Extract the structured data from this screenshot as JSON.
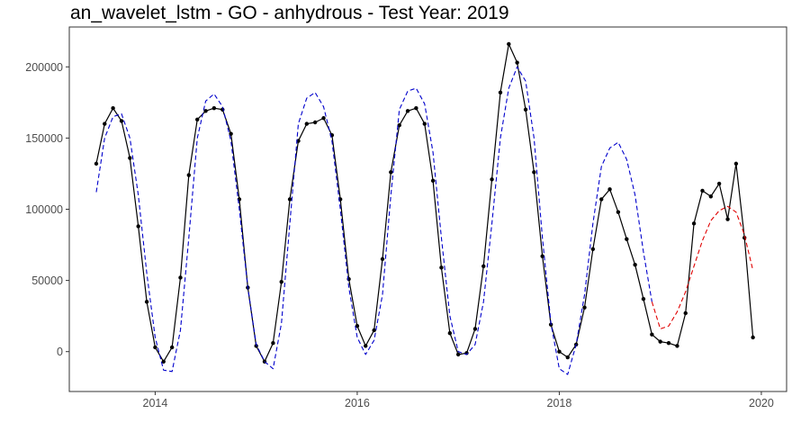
{
  "chart_data": {
    "type": "line",
    "title": "an_wavelet_lstm - GO - anhydrous - Test Year: 2019",
    "xlabel": "",
    "ylabel": "",
    "xlim": [
      2013.15,
      2020.25
    ],
    "ylim": [
      -28000,
      228000
    ],
    "x_ticks": [
      2014,
      2016,
      2018,
      2020
    ],
    "y_ticks": [
      0,
      50000,
      100000,
      150000,
      200000
    ],
    "x_tick_labels": [
      "2014",
      "2016",
      "2018",
      "2020"
    ],
    "y_tick_labels": [
      "0",
      "50000",
      "100000",
      "150000",
      "200000"
    ],
    "grid": false,
    "legend": false,
    "series": [
      {
        "style": "solid-with-points",
        "color": "#000000",
        "x": [
          2013.417,
          2013.5,
          2013.583,
          2013.667,
          2013.75,
          2013.833,
          2013.917,
          2014.0,
          2014.083,
          2014.167,
          2014.25,
          2014.333,
          2014.417,
          2014.5,
          2014.583,
          2014.667,
          2014.75,
          2014.833,
          2014.917,
          2015.0,
          2015.083,
          2015.167,
          2015.25,
          2015.333,
          2015.417,
          2015.5,
          2015.583,
          2015.667,
          2015.75,
          2015.833,
          2015.917,
          2016.0,
          2016.083,
          2016.167,
          2016.25,
          2016.333,
          2016.417,
          2016.5,
          2016.583,
          2016.667,
          2016.75,
          2016.833,
          2016.917,
          2017.0,
          2017.083,
          2017.167,
          2017.25,
          2017.333,
          2017.417,
          2017.5,
          2017.583,
          2017.667,
          2017.75,
          2017.833,
          2017.917,
          2018.0,
          2018.083,
          2018.167,
          2018.25,
          2018.333,
          2018.417,
          2018.5,
          2018.583,
          2018.667,
          2018.75,
          2018.833,
          2018.917,
          2019.0,
          2019.083,
          2019.167,
          2019.25,
          2019.333,
          2019.417,
          2019.5,
          2019.583,
          2019.667,
          2019.75,
          2019.833,
          2019.917
        ],
        "values": [
          132000,
          160000,
          171000,
          162000,
          136000,
          88000,
          35000,
          3000,
          -7000,
          3000,
          52000,
          124000,
          163000,
          169000,
          171000,
          170000,
          153000,
          107000,
          45000,
          4000,
          -7000,
          6000,
          49000,
          107000,
          148000,
          160000,
          161000,
          164000,
          152000,
          107000,
          51000,
          18000,
          4000,
          15000,
          65000,
          126000,
          159000,
          169000,
          171000,
          160000,
          120000,
          59000,
          13000,
          -2000,
          -1000,
          16000,
          60000,
          121000,
          182000,
          216000,
          203000,
          170000,
          126000,
          67000,
          19000,
          0,
          -4000,
          5000,
          31000,
          72000,
          107000,
          114000,
          98000,
          79000,
          61000,
          37000,
          12000,
          7000,
          6000,
          4000,
          27000,
          90000,
          113000,
          109000,
          118000,
          93000,
          132000,
          80000,
          10000
        ]
      },
      {
        "style": "dashed",
        "color": "#0000cc",
        "x": [
          2013.417,
          2013.5,
          2013.583,
          2013.667,
          2013.75,
          2013.833,
          2013.917,
          2014.0,
          2014.083,
          2014.167,
          2014.25,
          2014.333,
          2014.417,
          2014.5,
          2014.583,
          2014.667,
          2014.75,
          2014.833,
          2014.917,
          2015.0,
          2015.083,
          2015.167,
          2015.25,
          2015.333,
          2015.417,
          2015.5,
          2015.583,
          2015.667,
          2015.75,
          2015.833,
          2015.917,
          2016.0,
          2016.083,
          2016.167,
          2016.25,
          2016.333,
          2016.417,
          2016.5,
          2016.583,
          2016.667,
          2016.75,
          2016.833,
          2016.917,
          2017.0,
          2017.083,
          2017.167,
          2017.25,
          2017.333,
          2017.417,
          2017.5,
          2017.583,
          2017.667,
          2017.75,
          2017.833,
          2017.917,
          2018.0,
          2018.083,
          2018.167,
          2018.25,
          2018.333,
          2018.417,
          2018.5,
          2018.583,
          2018.667,
          2018.75,
          2018.833,
          2018.917
        ],
        "values": [
          112000,
          150000,
          165000,
          167000,
          150000,
          110000,
          55000,
          10000,
          -13000,
          -14000,
          15000,
          80000,
          150000,
          176000,
          181000,
          172000,
          148000,
          100000,
          45000,
          5000,
          -7000,
          -12000,
          20000,
          90000,
          160000,
          178000,
          182000,
          172000,
          148000,
          100000,
          45000,
          10000,
          -2000,
          8000,
          40000,
          110000,
          170000,
          183000,
          185000,
          174000,
          140000,
          80000,
          25000,
          0,
          -2000,
          5000,
          35000,
          90000,
          150000,
          185000,
          200000,
          190000,
          150000,
          80000,
          20000,
          -12000,
          -16000,
          5000,
          40000,
          90000,
          130000,
          143000,
          147000,
          135000,
          110000,
          70000,
          35000
        ]
      },
      {
        "style": "dashed",
        "color": "#e00000",
        "x": [
          2018.917,
          2019.0,
          2019.083,
          2019.167,
          2019.25,
          2019.333,
          2019.417,
          2019.5,
          2019.583,
          2019.667,
          2019.75,
          2019.833,
          2019.917
        ],
        "values": [
          35000,
          16000,
          18000,
          28000,
          42000,
          60000,
          78000,
          92000,
          99000,
          102000,
          98000,
          82000,
          57000
        ]
      }
    ]
  }
}
